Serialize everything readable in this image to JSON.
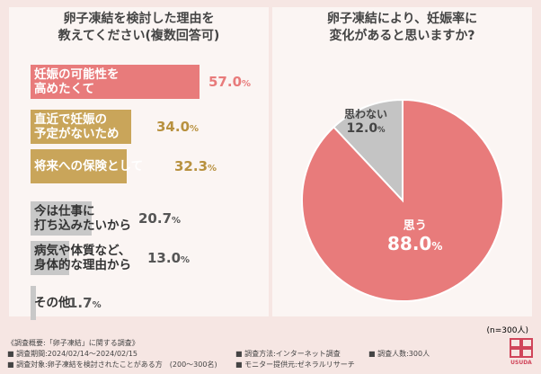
{
  "chart_data": [
    {
      "type": "bar",
      "title": "卵子凍結を検討した理由を\n教えてください(複数回答可)",
      "categories": [
        "妊娠の可能性を高めたくて",
        "直近で妊娠の予定がないため",
        "将来への保険として",
        "今は仕事に打ち込みたいから",
        "病気や体質など、身体的な理由から",
        "その他"
      ],
      "label_lines": [
        [
          "妊娠の可能性を",
          "高めたくて"
        ],
        [
          "直近で妊娠の",
          "予定がないため"
        ],
        [
          "将来への保険として"
        ],
        [
          "今は仕事に",
          "打ち込みたいから"
        ],
        [
          "病気や体質など、",
          "身体的な理由から"
        ],
        [
          "その他"
        ]
      ],
      "values": [
        57.0,
        34.0,
        32.3,
        20.7,
        13.0,
        1.7
      ],
      "value_labels": [
        "57.0",
        "34.0",
        "32.3",
        "20.7",
        "13.0",
        "1.7"
      ],
      "unit": "%",
      "colors": [
        "#e87b7b",
        "#c9a55a",
        "#c9a55a",
        "#c8c8c8",
        "#c8c8c8",
        "#c8c8c8"
      ]
    },
    {
      "type": "pie",
      "title": "卵子凍結により、妊娠率に\n変化があると思いますか?",
      "categories": [
        "思う",
        "思わない"
      ],
      "values": [
        88.0,
        12.0
      ],
      "value_labels": [
        "88.0",
        "12.0"
      ],
      "unit": "%",
      "colors": [
        "#e87b7b",
        "#c4c4c4"
      ],
      "sample_note": "(n=300人)"
    }
  ],
  "footer": {
    "line1": "《調査概要:「卵子凍結」に関する調査》",
    "line2": "■ 調査期間:2024/02/14〜2024/02/15",
    "line3": "■ 調査対象:卵子凍結を検討されたことがある方　(200〜300名)",
    "method": "■ 調査方法:インターネット調査",
    "provider": "■ モニター提供元:ゼネラルリサーチ",
    "count": "■ 調査人数:300人",
    "logo_text": "USUDA"
  }
}
